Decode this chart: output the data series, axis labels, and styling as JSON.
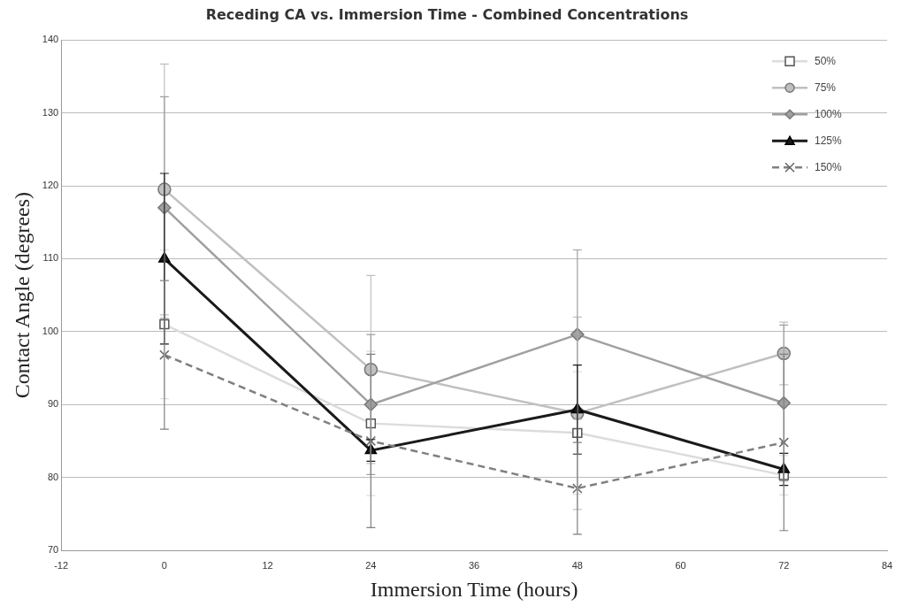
{
  "chart_data": {
    "type": "line",
    "title": "Receding CA vs. Immersion Time - Combined Concentrations",
    "xlabel": "Immersion Time (hours)",
    "ylabel": "Contact Angle (degrees)",
    "x": [
      0,
      24,
      48,
      72
    ],
    "series": [
      {
        "name": "50%",
        "color": "#dcdcdc",
        "marker": "square",
        "line_style": "solid",
        "values": [
          101,
          87.4,
          86.1,
          80.3
        ],
        "errors": [
          10.2,
          9.9,
          8.4,
          2.7
        ]
      },
      {
        "name": "75%",
        "color": "#c0c0c0",
        "marker": "circle",
        "line_style": "solid",
        "values": [
          119.5,
          94.8,
          88.8,
          97
        ],
        "errors": [
          17.2,
          12.9,
          13.2,
          4.3
        ]
      },
      {
        "name": "100%",
        "color": "#a0a0a0",
        "marker": "diamond",
        "line_style": "solid",
        "values": [
          117,
          90,
          99.6,
          90.2
        ],
        "errors": [
          15.2,
          9.6,
          11.6,
          10.7
        ]
      },
      {
        "name": "125%",
        "color": "#1a1a1a",
        "marker": "triangle",
        "line_style": "solid",
        "values": [
          110,
          83.7,
          89.3,
          81.1
        ],
        "errors": [
          11.7,
          1.5,
          6.1,
          2.2
        ]
      },
      {
        "name": "150%",
        "color": "#808080",
        "marker": "cross",
        "line_style": "dashed",
        "values": [
          96.8,
          85,
          78.5,
          84.8
        ],
        "errors": [
          10.2,
          11.9,
          6.3,
          12.1
        ]
      }
    ],
    "xlim": [
      -12,
      84
    ],
    "xticks": [
      -12,
      0,
      12,
      24,
      36,
      48,
      60,
      72,
      84
    ],
    "ylim": [
      70,
      140
    ],
    "yticks": [
      70,
      80,
      90,
      100,
      110,
      120,
      130,
      140
    ],
    "grid": "y",
    "legend": "top right"
  }
}
